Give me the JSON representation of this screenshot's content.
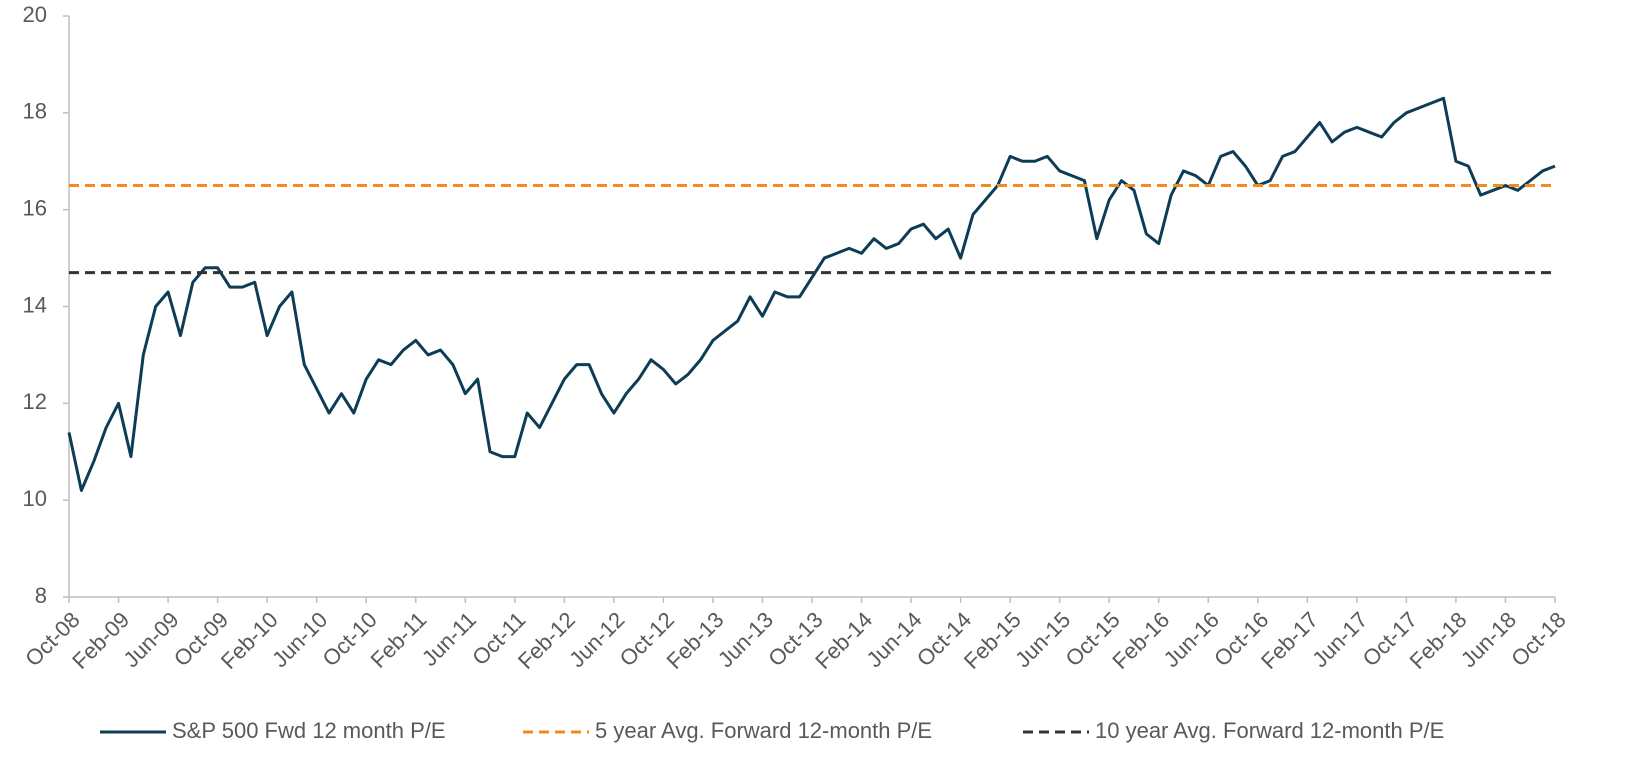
{
  "chart_data": {
    "type": "line",
    "categories": [
      "Oct-08",
      null,
      null,
      null,
      "Feb-09",
      null,
      null,
      null,
      "Jun-09",
      null,
      null,
      null,
      "Oct-09",
      null,
      null,
      null,
      "Feb-10",
      null,
      null,
      null,
      "Jun-10",
      null,
      null,
      null,
      "Oct-10",
      null,
      null,
      null,
      "Feb-11",
      null,
      null,
      null,
      "Jun-11",
      null,
      null,
      null,
      "Oct-11",
      null,
      null,
      null,
      "Feb-12",
      null,
      null,
      null,
      "Jun-12",
      null,
      null,
      null,
      "Oct-12",
      null,
      null,
      null,
      "Feb-13",
      null,
      null,
      null,
      "Jun-13",
      null,
      null,
      null,
      "Oct-13",
      null,
      null,
      null,
      "Feb-14",
      null,
      null,
      null,
      "Jun-14",
      null,
      null,
      null,
      "Oct-14",
      null,
      null,
      null,
      "Feb-15",
      null,
      null,
      null,
      "Jun-15",
      null,
      null,
      null,
      "Oct-15",
      null,
      null,
      null,
      "Feb-16",
      null,
      null,
      null,
      "Jun-16",
      null,
      null,
      null,
      "Oct-16",
      null,
      null,
      null,
      "Feb-17",
      null,
      null,
      null,
      "Jun-17",
      null,
      null,
      null,
      "Oct-17",
      null,
      null,
      null,
      "Feb-18",
      null,
      null,
      null,
      "Jun-18",
      null,
      null,
      null,
      "Oct-18"
    ],
    "series": [
      {
        "name": "S&P 500 Fwd 12 month P/E",
        "color": "#0d3d56",
        "dash": false,
        "values": [
          11.4,
          10.2,
          10.8,
          11.5,
          12.0,
          10.9,
          13.0,
          14.0,
          14.3,
          13.4,
          14.5,
          14.8,
          14.8,
          14.4,
          14.4,
          14.5,
          13.4,
          14.0,
          14.3,
          12.8,
          12.3,
          11.8,
          12.2,
          11.8,
          12.5,
          12.9,
          12.8,
          13.1,
          13.3,
          13.0,
          13.1,
          12.8,
          12.2,
          12.5,
          11.0,
          10.9,
          10.9,
          11.8,
          11.5,
          12.0,
          12.5,
          12.8,
          12.8,
          12.2,
          11.8,
          12.2,
          12.5,
          12.9,
          12.7,
          12.4,
          12.6,
          12.9,
          13.3,
          13.5,
          13.7,
          14.2,
          13.8,
          14.3,
          14.2,
          14.2,
          14.6,
          15.0,
          15.1,
          15.2,
          15.1,
          15.4,
          15.2,
          15.3,
          15.6,
          15.7,
          15.4,
          15.6,
          15.0,
          15.9,
          16.2,
          16.5,
          17.1,
          17.0,
          17.0,
          17.1,
          16.8,
          16.7,
          16.6,
          15.4,
          16.2,
          16.6,
          16.4,
          15.5,
          15.3,
          16.3,
          16.8,
          16.7,
          16.5,
          17.1,
          17.2,
          16.9,
          16.5,
          16.6,
          17.1,
          17.2,
          17.5,
          17.8,
          17.4,
          17.6,
          17.7,
          17.6,
          17.5,
          17.8,
          18.0,
          18.1,
          18.2,
          18.3,
          17.0,
          16.9,
          16.3,
          16.4,
          16.5,
          16.4,
          16.6,
          16.8,
          16.9
        ]
      },
      {
        "name": "5 year Avg. Forward 12-month P/E",
        "color": "#f28a1d",
        "dash": true,
        "values": [
          16.5,
          16.5,
          16.5,
          16.5,
          16.5,
          16.5,
          16.5,
          16.5,
          16.5,
          16.5,
          16.5,
          16.5,
          16.5,
          16.5,
          16.5,
          16.5,
          16.5,
          16.5,
          16.5,
          16.5,
          16.5,
          16.5,
          16.5,
          16.5,
          16.5,
          16.5,
          16.5,
          16.5,
          16.5,
          16.5,
          16.5,
          16.5,
          16.5,
          16.5,
          16.5,
          16.5,
          16.5,
          16.5,
          16.5,
          16.5,
          16.5,
          16.5,
          16.5,
          16.5,
          16.5,
          16.5,
          16.5,
          16.5,
          16.5,
          16.5,
          16.5,
          16.5,
          16.5,
          16.5,
          16.5,
          16.5,
          16.5,
          16.5,
          16.5,
          16.5,
          16.5,
          16.5,
          16.5,
          16.5,
          16.5,
          16.5,
          16.5,
          16.5,
          16.5,
          16.5,
          16.5,
          16.5,
          16.5,
          16.5,
          16.5,
          16.5,
          16.5,
          16.5,
          16.5,
          16.5,
          16.5,
          16.5,
          16.5,
          16.5,
          16.5,
          16.5,
          16.5,
          16.5,
          16.5,
          16.5,
          16.5,
          16.5,
          16.5,
          16.5,
          16.5,
          16.5,
          16.5,
          16.5,
          16.5,
          16.5,
          16.5,
          16.5,
          16.5,
          16.5,
          16.5,
          16.5,
          16.5,
          16.5,
          16.5,
          16.5,
          16.5,
          16.5,
          16.5,
          16.5,
          16.5,
          16.5,
          16.5,
          16.5,
          16.5,
          16.5,
          16.5
        ]
      },
      {
        "name": "10 year Avg. Forward 12-month P/E",
        "color": "#333333",
        "dash": true,
        "values": [
          14.7,
          14.7,
          14.7,
          14.7,
          14.7,
          14.7,
          14.7,
          14.7,
          14.7,
          14.7,
          14.7,
          14.7,
          14.7,
          14.7,
          14.7,
          14.7,
          14.7,
          14.7,
          14.7,
          14.7,
          14.7,
          14.7,
          14.7,
          14.7,
          14.7,
          14.7,
          14.7,
          14.7,
          14.7,
          14.7,
          14.7,
          14.7,
          14.7,
          14.7,
          14.7,
          14.7,
          14.7,
          14.7,
          14.7,
          14.7,
          14.7,
          14.7,
          14.7,
          14.7,
          14.7,
          14.7,
          14.7,
          14.7,
          14.7,
          14.7,
          14.7,
          14.7,
          14.7,
          14.7,
          14.7,
          14.7,
          14.7,
          14.7,
          14.7,
          14.7,
          14.7,
          14.7,
          14.7,
          14.7,
          14.7,
          14.7,
          14.7,
          14.7,
          14.7,
          14.7,
          14.7,
          14.7,
          14.7,
          14.7,
          14.7,
          14.7,
          14.7,
          14.7,
          14.7,
          14.7,
          14.7,
          14.7,
          14.7,
          14.7,
          14.7,
          14.7,
          14.7,
          14.7,
          14.7,
          14.7,
          14.7,
          14.7,
          14.7,
          14.7,
          14.7,
          14.7,
          14.7,
          14.7,
          14.7,
          14.7,
          14.7,
          14.7,
          14.7,
          14.7,
          14.7,
          14.7,
          14.7,
          14.7,
          14.7,
          14.7,
          14.7,
          14.7,
          14.7,
          14.7,
          14.7,
          14.7,
          14.7,
          14.7,
          14.7,
          14.7,
          14.7
        ]
      }
    ],
    "ylim": [
      8,
      20
    ],
    "yticks": [
      8,
      10,
      12,
      14,
      16,
      18,
      20
    ],
    "grid": false,
    "legend": "bottom"
  }
}
